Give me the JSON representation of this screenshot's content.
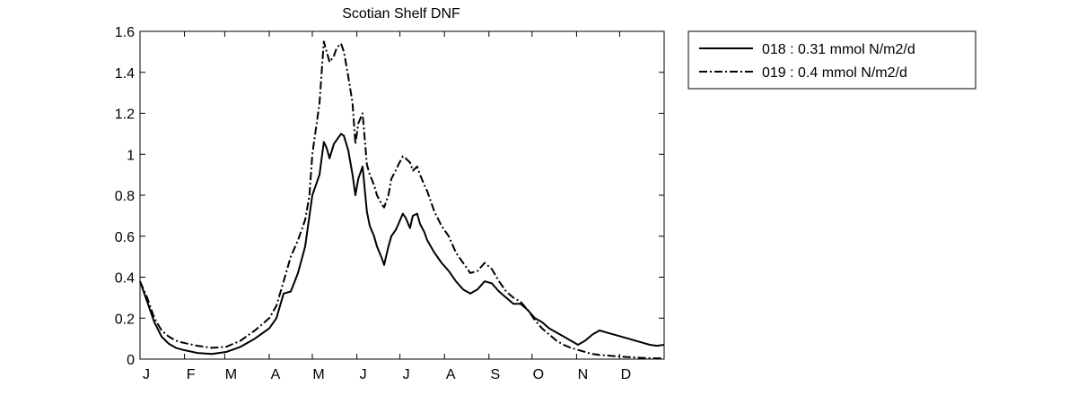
{
  "chart_data": {
    "type": "line",
    "title": "Scotian Shelf DNF",
    "xlabel": "",
    "ylabel": "",
    "xlim": [
      0,
      365
    ],
    "ylim": [
      0,
      1.6
    ],
    "yticks": [
      "0",
      "0.2",
      "0.4",
      "0.6",
      "0.8",
      "1",
      "1.2",
      "1.4",
      "1.6"
    ],
    "month_labels": [
      "J",
      "F",
      "M",
      "A",
      "M",
      "J",
      "J",
      "A",
      "S",
      "O",
      "N",
      "D"
    ],
    "grid": false,
    "legend_position": "outside-right",
    "series": [
      {
        "name": "018 : 0.31 mmol N/m2/d",
        "style": "solid",
        "color": "#000000",
        "x": [
          0,
          5,
          10,
          15,
          20,
          25,
          30,
          40,
          50,
          60,
          70,
          80,
          90,
          95,
          100,
          105,
          110,
          115,
          118,
          120,
          125,
          128,
          130,
          132,
          135,
          137,
          140,
          142,
          145,
          148,
          150,
          152,
          155,
          158,
          160,
          163,
          165,
          168,
          170,
          173,
          175,
          178,
          180,
          183,
          185,
          188,
          190,
          193,
          195,
          198,
          200,
          205,
          210,
          215,
          220,
          225,
          230,
          235,
          240,
          245,
          250,
          255,
          260,
          265,
          270,
          275,
          280,
          285,
          290,
          295,
          300,
          305,
          310,
          315,
          320,
          325,
          330,
          335,
          340,
          345,
          350,
          355,
          360,
          365
        ],
        "values": [
          0.38,
          0.28,
          0.18,
          0.11,
          0.075,
          0.055,
          0.045,
          0.03,
          0.025,
          0.035,
          0.06,
          0.1,
          0.15,
          0.2,
          0.32,
          0.33,
          0.42,
          0.55,
          0.7,
          0.8,
          0.9,
          1.06,
          1.03,
          0.98,
          1.05,
          1.07,
          1.1,
          1.09,
          1.02,
          0.9,
          0.8,
          0.88,
          0.94,
          0.72,
          0.65,
          0.6,
          0.55,
          0.5,
          0.46,
          0.55,
          0.6,
          0.63,
          0.66,
          0.71,
          0.69,
          0.64,
          0.7,
          0.71,
          0.66,
          0.62,
          0.58,
          0.52,
          0.47,
          0.43,
          0.38,
          0.34,
          0.32,
          0.34,
          0.38,
          0.37,
          0.33,
          0.3,
          0.27,
          0.27,
          0.24,
          0.2,
          0.18,
          0.15,
          0.13,
          0.11,
          0.09,
          0.07,
          0.09,
          0.12,
          0.14,
          0.13,
          0.12,
          0.11,
          0.1,
          0.09,
          0.08,
          0.07,
          0.065,
          0.07
        ]
      },
      {
        "name": "019 : 0.4 mmol N/m2/d",
        "style": "dash-dot",
        "color": "#000000",
        "x": [
          0,
          5,
          10,
          15,
          20,
          25,
          30,
          40,
          50,
          60,
          70,
          80,
          90,
          95,
          100,
          105,
          110,
          115,
          118,
          120,
          122,
          125,
          127,
          128,
          130,
          132,
          135,
          137,
          140,
          142,
          145,
          148,
          150,
          152,
          155,
          158,
          160,
          163,
          165,
          168,
          170,
          173,
          175,
          178,
          180,
          183,
          185,
          188,
          190,
          193,
          195,
          198,
          200,
          205,
          210,
          215,
          220,
          225,
          230,
          235,
          240,
          245,
          250,
          255,
          260,
          265,
          270,
          275,
          280,
          285,
          290,
          295,
          300,
          305,
          310,
          315,
          320,
          325,
          330,
          335,
          340,
          345,
          350,
          355,
          360,
          365
        ],
        "values": [
          0.38,
          0.3,
          0.2,
          0.14,
          0.11,
          0.09,
          0.08,
          0.065,
          0.055,
          0.06,
          0.09,
          0.14,
          0.2,
          0.26,
          0.38,
          0.5,
          0.58,
          0.68,
          0.8,
          1.0,
          1.1,
          1.25,
          1.45,
          1.55,
          1.5,
          1.45,
          1.48,
          1.52,
          1.54,
          1.5,
          1.38,
          1.25,
          1.05,
          1.15,
          1.2,
          0.95,
          0.9,
          0.85,
          0.8,
          0.76,
          0.74,
          0.8,
          0.88,
          0.92,
          0.95,
          0.99,
          0.98,
          0.96,
          0.92,
          0.94,
          0.9,
          0.85,
          0.82,
          0.72,
          0.65,
          0.6,
          0.52,
          0.47,
          0.42,
          0.43,
          0.47,
          0.44,
          0.38,
          0.33,
          0.3,
          0.28,
          0.24,
          0.19,
          0.15,
          0.12,
          0.09,
          0.07,
          0.055,
          0.045,
          0.035,
          0.025,
          0.02,
          0.018,
          0.015,
          0.012,
          0.01,
          0.008,
          0.006,
          0.005,
          0.004,
          0.004
        ]
      }
    ]
  }
}
